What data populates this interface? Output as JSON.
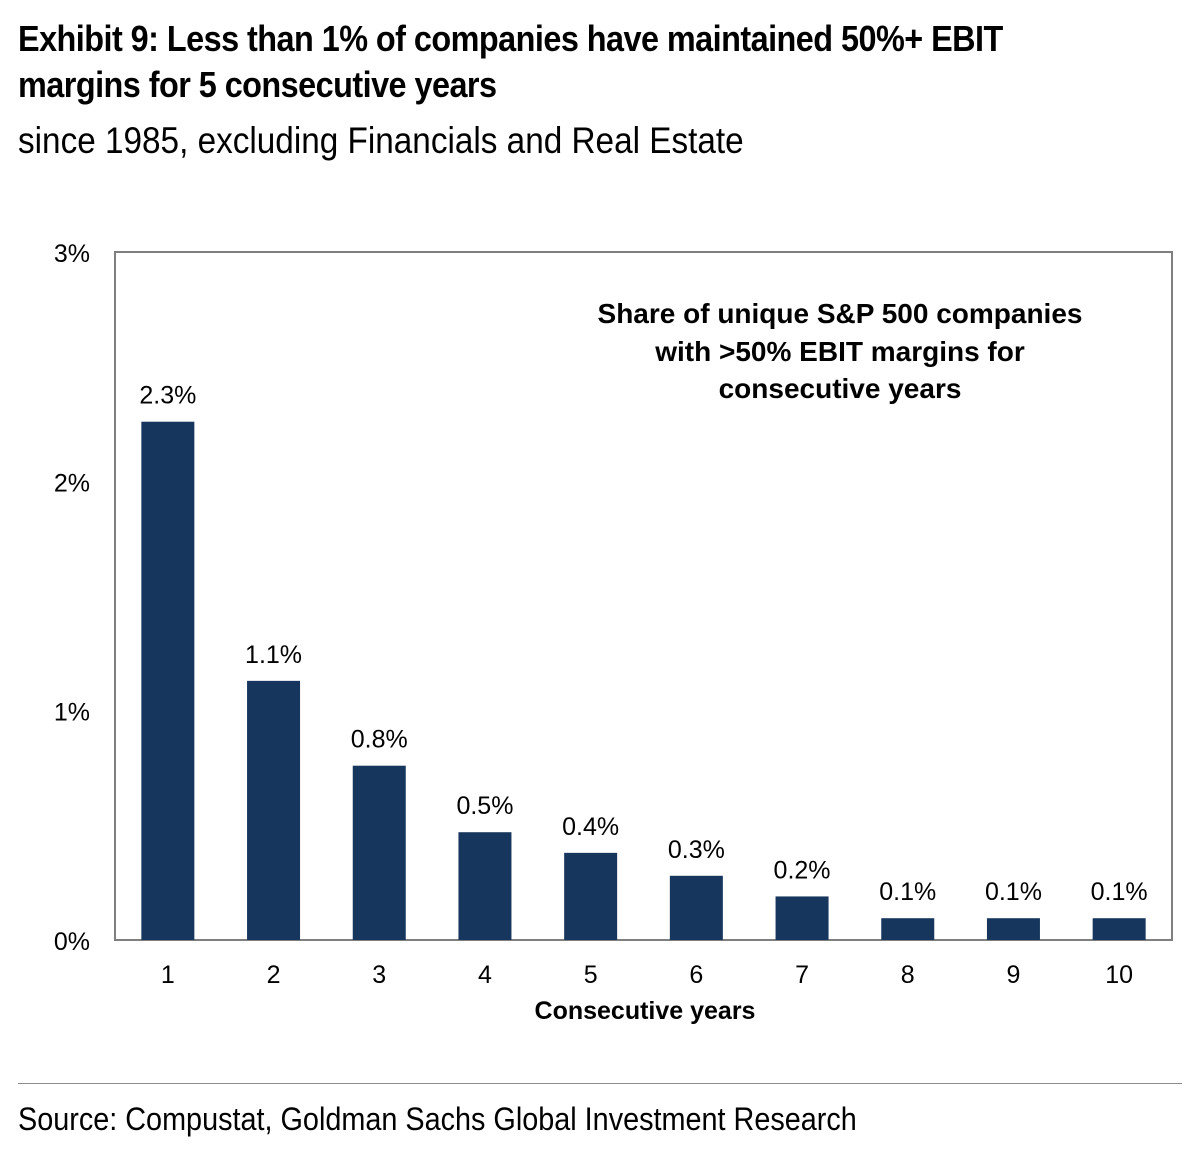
{
  "title_lines": [
    "Exhibit 9: Less than 1% of companies have maintained 50%+ EBIT",
    "margins for 5 consecutive years"
  ],
  "subtitle": "since 1985, excluding Financials and Real Estate",
  "source": "Source: Compustat, Goldman Sachs Global Investment Research",
  "colors": {
    "bar": "#17365d",
    "frame": "#7f7f7f",
    "text": "#000000"
  },
  "chart_data": {
    "type": "bar",
    "categories": [
      "1",
      "2",
      "3",
      "4",
      "5",
      "6",
      "7",
      "8",
      "9",
      "10"
    ],
    "values": [
      2.26,
      1.13,
      0.76,
      0.47,
      0.38,
      0.28,
      0.19,
      0.095,
      0.095,
      0.095
    ],
    "data_labels": [
      "2.3%",
      "1.1%",
      "0.8%",
      "0.5%",
      "0.4%",
      "0.3%",
      "0.2%",
      "0.1%",
      "0.1%",
      "0.1%"
    ],
    "xlabel": "Consecutive years",
    "ylabel": "",
    "ylim": [
      0,
      3
    ],
    "yticks": [
      0,
      1,
      2,
      3
    ],
    "ytick_labels": [
      "0%",
      "1%",
      "2%",
      "3%"
    ],
    "annotation_lines": [
      "Share of unique S&P 500 companies",
      "with >50% EBIT margins for",
      "consecutive years"
    ],
    "grid": false
  }
}
